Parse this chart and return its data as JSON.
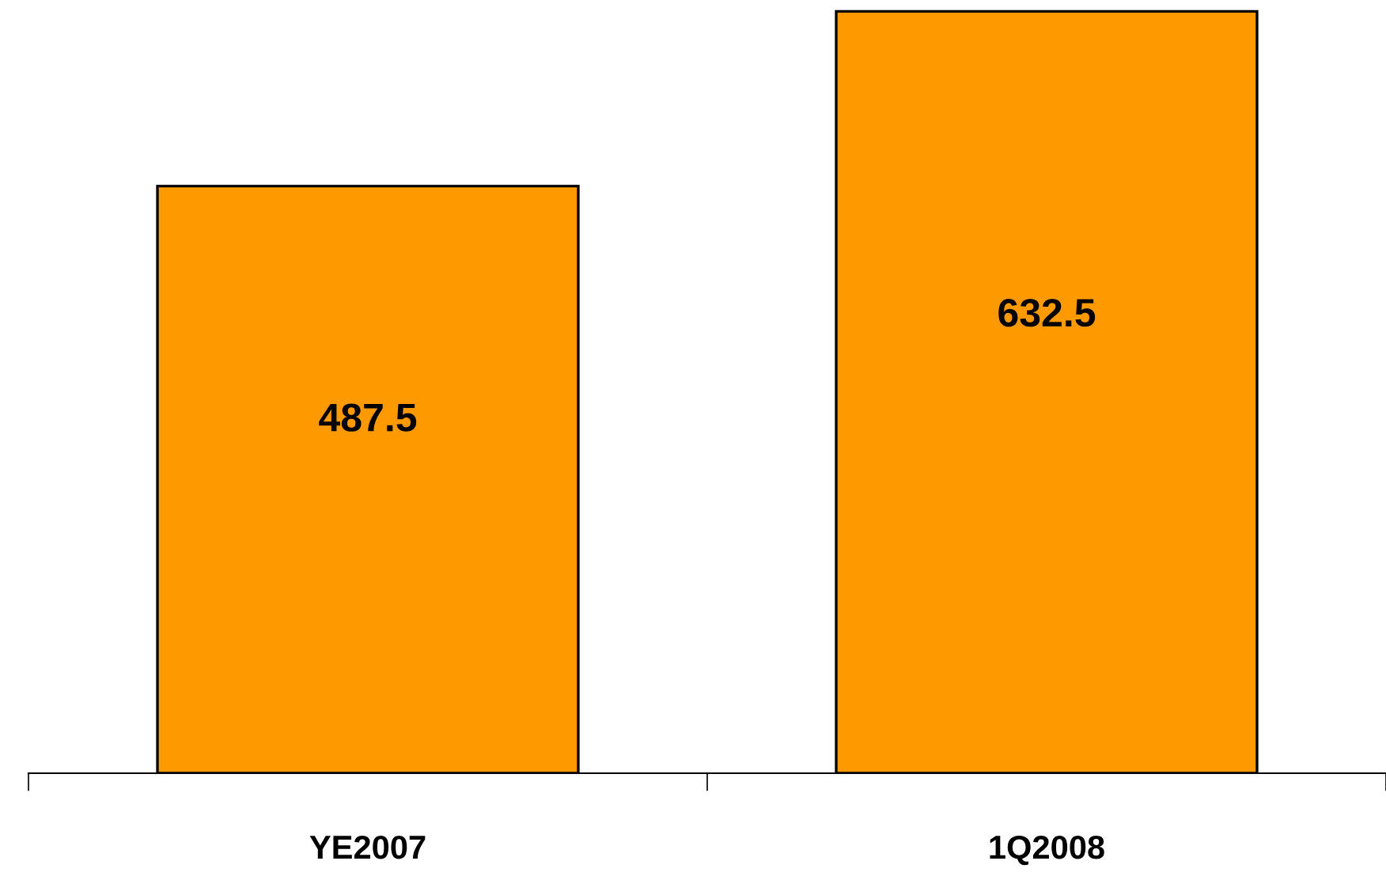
{
  "chart_data": {
    "type": "bar",
    "categories": [
      "YE2007",
      "1Q2008"
    ],
    "values": [
      487.5,
      632.5
    ],
    "color": "#ff9900",
    "data_labels": true,
    "grid": false,
    "legend": false,
    "tick_labels": "x"
  }
}
